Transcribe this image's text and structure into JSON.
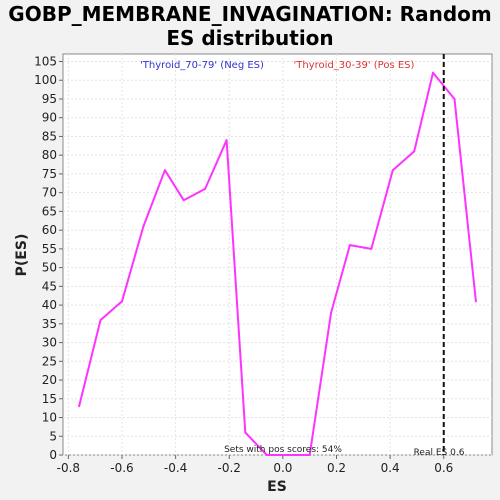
{
  "chart_data": {
    "type": "line",
    "title_lines": [
      "GOBP_MEMBRANE_INVAGINATION: Random",
      "ES distribution"
    ],
    "xlabel": "ES",
    "ylabel": "P(ES)",
    "xlim": [
      -0.82,
      0.78
    ],
    "ylim": [
      0,
      107
    ],
    "x_ticks": [
      -0.8,
      -0.6,
      -0.4,
      -0.2,
      0.0,
      0.2,
      0.4,
      0.6
    ],
    "x_tick_labels": [
      "-0.8",
      "-0.6",
      "-0.4",
      "-0.2",
      "0.0",
      "0.2",
      "0.4",
      "0.6"
    ],
    "y_ticks": [
      0,
      5,
      10,
      15,
      20,
      25,
      30,
      35,
      40,
      45,
      50,
      55,
      60,
      65,
      70,
      75,
      80,
      85,
      90,
      95,
      100,
      105
    ],
    "y_tick_labels": [
      "0",
      "5",
      "10",
      "15",
      "20",
      "25",
      "30",
      "35",
      "40",
      "45",
      "50",
      "55",
      "60",
      "65",
      "70",
      "75",
      "80",
      "85",
      "90",
      "95",
      "100",
      "105"
    ],
    "grid": true,
    "series": [
      {
        "color": "#ff33ff",
        "x": [
          -0.76,
          -0.68,
          -0.6,
          -0.52,
          -0.44,
          -0.37,
          -0.29,
          -0.21,
          -0.14,
          -0.06,
          0.02,
          0.1,
          0.18,
          0.25,
          0.33,
          0.41,
          0.49,
          0.56,
          0.64,
          0.72
        ],
        "y": [
          13,
          36,
          41,
          61,
          76,
          68,
          71,
          84,
          6,
          0,
          0,
          0,
          38,
          56,
          55,
          76,
          81,
          102,
          95,
          41
        ]
      }
    ],
    "real_es": 0.6,
    "real_es_label": "Real ES 0.6",
    "legend": {
      "neg_label": "'Thyroid_70-79' (Neg ES)",
      "neg_color": "#3333cc",
      "pos_label": "'Thyroid_30-39' (Pos ES)",
      "pos_color": "#dd3333"
    },
    "annotation": "Sets with pos scores: 54%"
  }
}
